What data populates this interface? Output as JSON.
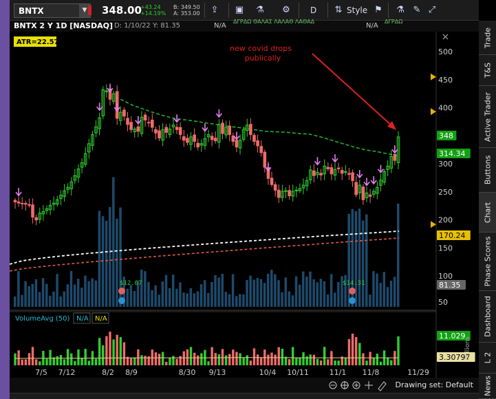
{
  "toolbar": {
    "symbol": "BNTX",
    "price": "348.00",
    "change": "+43.24",
    "change_pct": "+14.19%",
    "bid": "B: 349.50",
    "ask": "A: 353.00",
    "aggregation": "D",
    "style_label": "Style"
  },
  "header": {
    "title": "BNTX 2 Y 1D [NASDAQ]",
    "info": "D: 1/10/22  Y: 81.35",
    "na_left": "N/A",
    "na_right": "N/A",
    "squiggle": "ΔΓΡΔΩ ΘΑΛΑΣ ΛΑΛΑΘ ΛΑΘΑΔ",
    "squiggle2": "ΔΓΡΔΩ"
  },
  "atr_label": "ATR=22.57",
  "annotation": {
    "line1": "new covid drops",
    "line2": "publically",
    "color": "#e02020"
  },
  "volume_study": {
    "label": "VolumeAvg (50)",
    "v1": "N/A",
    "v2": "N/A"
  },
  "price_badges": {
    "last": "348",
    "ma_green": "314.34",
    "ma_orange": "170.24",
    "vol_gray": "81.35",
    "vol_green": "11.029",
    "vol_avg": "3.30797"
  },
  "volume_axis_label": "millions",
  "events": [
    {
      "label": "$12.67",
      "x_date": "8/9"
    },
    {
      "label": "$14.31",
      "x_date": "11/1"
    }
  ],
  "bottom": {
    "drawing_set": "Drawing set: Default"
  },
  "right_tabs": [
    "Trade",
    "T&S",
    "Active Trader",
    "Buttons",
    "Chart",
    "Phase Scores",
    "Dashboard",
    "L 2",
    "News"
  ],
  "colors": {
    "up": "#2fcf2f",
    "down": "#f06a6a",
    "ma_green": "#20b030",
    "ma_white": "#ffffff",
    "ma_red": "#e05a4a",
    "volume_bar": "#1e4a6b",
    "purple_arrow": "#e87ff0"
  },
  "chart_data": {
    "type": "candlestick",
    "x_tick_labels": [
      "7/5",
      "7/12",
      "8/2",
      "8/9",
      "8/30",
      "9/13",
      "10/4",
      "10/11",
      "11/1",
      "11/8",
      "11/29"
    ],
    "y_tick_labels": [
      "500",
      "450",
      "400",
      "350",
      "300",
      "250",
      "200",
      "150",
      "100",
      "50"
    ],
    "ylim": [
      50,
      520
    ],
    "closes": [
      232,
      230,
      229,
      228,
      226,
      205,
      200,
      212,
      215,
      220,
      226,
      230,
      236,
      244,
      252,
      258,
      268,
      279,
      291,
      302,
      318,
      336,
      352,
      366,
      382,
      432,
      430,
      415,
      425,
      381,
      392,
      385,
      370,
      361,
      362,
      358,
      383,
      378,
      374,
      365,
      355,
      346,
      361,
      356,
      362,
      369,
      361,
      352,
      342,
      338,
      348,
      340,
      330,
      336,
      345,
      352,
      343,
      341,
      370,
      354,
      365,
      352,
      340,
      330,
      342,
      361,
      369,
      352,
      340,
      332,
      320,
      294,
      274,
      263,
      253,
      240,
      251,
      252,
      243,
      251,
      253,
      256,
      262,
      270,
      289,
      279,
      285,
      280,
      296,
      291,
      282,
      290,
      291,
      283,
      286,
      281,
      270,
      245,
      262,
      236,
      248,
      242,
      251,
      258,
      271,
      286,
      296,
      313,
      306,
      348
    ],
    "vol_ma50": [
      280,
      278,
      276,
      273,
      271,
      268,
      266,
      267,
      270,
      274,
      278,
      284,
      290,
      295,
      300,
      305,
      309,
      314,
      320,
      326,
      333,
      336,
      338,
      341,
      343,
      346
    ],
    "vol_ma200": [
      300,
      299,
      298,
      296,
      294,
      292,
      290,
      289,
      289,
      288,
      287,
      286,
      286,
      285,
      284,
      284,
      283,
      283,
      283,
      282,
      282,
      282,
      281,
      281,
      281,
      281
    ],
    "ma_green_values": [
      415,
      405,
      398,
      391,
      385,
      380,
      378,
      375,
      372,
      369,
      366,
      364,
      361,
      358,
      357,
      356,
      354,
      353,
      348,
      342,
      336,
      330,
      325,
      322,
      318,
      314
    ],
    "volume_avg_line": [
      3.0,
      3.1,
      3.1,
      3.2,
      3.3,
      3.3,
      3.3,
      3.4,
      3.4,
      3.3,
      3.3,
      3.3,
      3.3
    ]
  }
}
